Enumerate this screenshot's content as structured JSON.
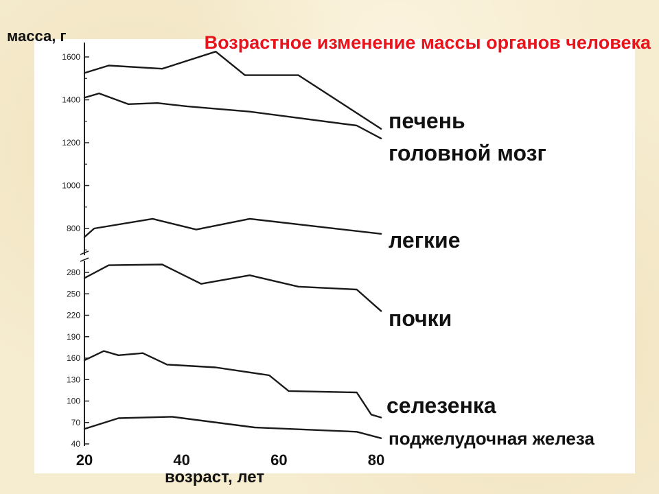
{
  "chart_data": {
    "type": "line",
    "title": "Возрастное изменение массы органов человека",
    "title_color": "#e8141c",
    "ylabel": "масса, г",
    "xlabel": "возраст, лет",
    "xlim": [
      20,
      80
    ],
    "x_ticks": [
      20,
      40,
      60,
      80
    ],
    "y_axis_break": true,
    "upper_axis": {
      "ylim": [
        700,
        1650
      ],
      "ticks": [
        800,
        1000,
        1200,
        1400,
        1600
      ]
    },
    "lower_axis": {
      "ylim": [
        40,
        290
      ],
      "ticks": [
        40,
        70,
        100,
        130,
        160,
        190,
        220,
        250,
        280
      ]
    },
    "grid": false,
    "series": [
      {
        "name": "печень",
        "axis": "upper",
        "points": [
          [
            20,
            1525
          ],
          [
            25,
            1560
          ],
          [
            36,
            1545
          ],
          [
            47,
            1625
          ],
          [
            53,
            1515
          ],
          [
            64,
            1515
          ],
          [
            81,
            1265
          ]
        ]
      },
      {
        "name": "головной мозг",
        "axis": "upper",
        "points": [
          [
            20,
            1410
          ],
          [
            23,
            1430
          ],
          [
            29,
            1380
          ],
          [
            35,
            1385
          ],
          [
            41,
            1370
          ],
          [
            54,
            1345
          ],
          [
            76,
            1280
          ],
          [
            81,
            1220
          ]
        ]
      },
      {
        "name": "легкие",
        "axis": "upper",
        "points": [
          [
            20,
            760
          ],
          [
            22,
            800
          ],
          [
            34,
            845
          ],
          [
            43,
            795
          ],
          [
            54,
            845
          ],
          [
            81,
            775
          ]
        ]
      },
      {
        "name": "почки",
        "axis": "lower",
        "points": [
          [
            20,
            272
          ],
          [
            25,
            290
          ],
          [
            36,
            291
          ],
          [
            44,
            264
          ],
          [
            54,
            276
          ],
          [
            64,
            260
          ],
          [
            76,
            256
          ],
          [
            81,
            226
          ]
        ]
      },
      {
        "name": "селезенка",
        "axis": "lower",
        "points": [
          [
            20,
            157
          ],
          [
            24,
            170
          ],
          [
            27,
            164
          ],
          [
            32,
            167
          ],
          [
            37,
            151
          ],
          [
            47,
            147
          ],
          [
            58,
            136
          ],
          [
            62,
            114
          ],
          [
            76,
            112
          ],
          [
            79,
            81
          ],
          [
            81,
            77
          ]
        ]
      },
      {
        "name": "поджелудочная железа",
        "axis": "lower",
        "points": [
          [
            20,
            61
          ],
          [
            27,
            76
          ],
          [
            38,
            78
          ],
          [
            55,
            63
          ],
          [
            76,
            57
          ],
          [
            81,
            48
          ]
        ]
      }
    ]
  }
}
